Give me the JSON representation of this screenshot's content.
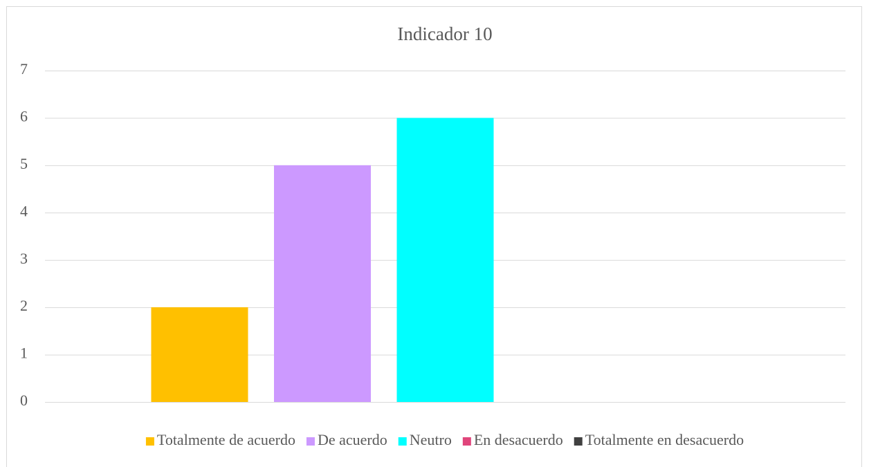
{
  "chart_data": {
    "type": "bar",
    "title": "Indicador 10",
    "categories": [
      null
    ],
    "series": [
      {
        "name": "Totalmente de acuerdo",
        "color": "#ffc000",
        "values": [
          2
        ]
      },
      {
        "name": "De acuerdo",
        "color": "#cc99ff",
        "values": [
          5
        ]
      },
      {
        "name": "Neutro",
        "color": "#00ffff",
        "values": [
          6
        ]
      },
      {
        "name": "En desacuerdo",
        "color": "#e0457b",
        "values": [
          0
        ]
      },
      {
        "name": "Totalmente en desacuerdo",
        "color": "#404040",
        "values": [
          0
        ]
      }
    ],
    "ylim": [
      0,
      7
    ],
    "yticks": [
      0,
      1,
      2,
      3,
      4,
      5,
      6,
      7
    ],
    "grid": true,
    "legend": "bottom"
  }
}
